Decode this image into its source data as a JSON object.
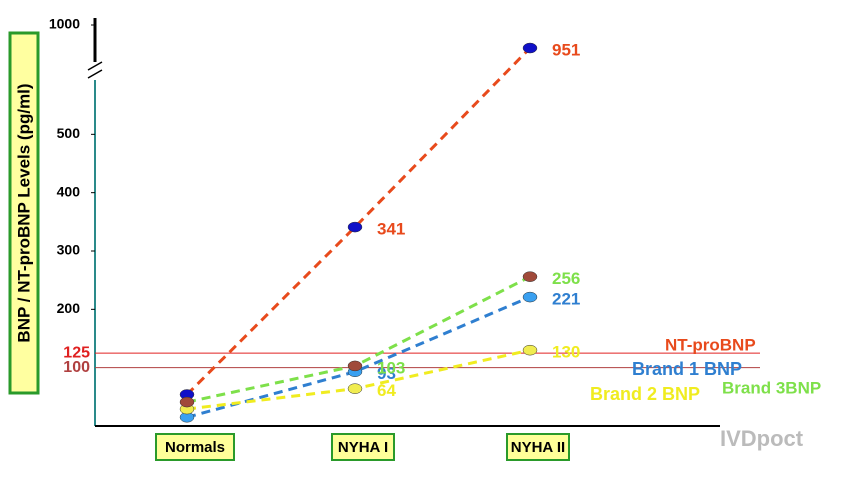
{
  "chart_data": {
    "type": "line",
    "y_title": "BNP / NT-proBNP Levels (pg/ml)",
    "categories": [
      "Normals",
      "NYHA I",
      "NYHA II"
    ],
    "series": [
      {
        "name": "NT-proBNP",
        "color": "#e84a1c",
        "marker_color": "#1010c8",
        "values": [
          54,
          341,
          951
        ]
      },
      {
        "name": "Brand 1 BNP",
        "color": "#2f7fd0",
        "marker_color": "#3aa0f0",
        "values": [
          15,
          93,
          221
        ]
      },
      {
        "name": "Brand 2 BNP",
        "color": "#f0ec20",
        "marker_color": "#f0ec50",
        "values": [
          29,
          64,
          130
        ]
      },
      {
        "name": "Brand 3BNP",
        "color": "#7ee04a",
        "marker_color": "#a04a3a",
        "values": [
          41,
          103,
          256
        ]
      }
    ],
    "ylim": [
      0,
      1000
    ],
    "y_break": [
      600,
      900
    ],
    "yticks": [
      200,
      300,
      400,
      500,
      1000
    ],
    "reference_lines": [
      {
        "value": 125,
        "color": "#e02020"
      },
      {
        "value": 100,
        "color": "#b04040"
      }
    ],
    "watermark": "IVDpoct"
  }
}
